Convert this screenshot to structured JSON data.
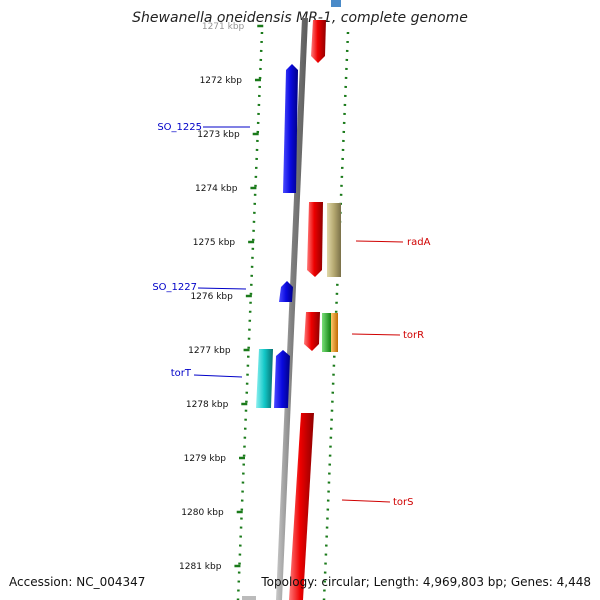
{
  "title": "Shewanella oneidensis MR-1, complete genome",
  "accession_text": "Accession: NC_004347",
  "summary_text": "Topology: circular; Length: 4,969,803 bp; Genes: 4,448",
  "colors": {
    "forward_label": "#0000c8",
    "reverse_label": "#d00000",
    "tick": "#1a7a1a",
    "backbone": "#8a8a8a"
  },
  "ticks": [
    "1271 kbp",
    "1272 kbp",
    "1273 kbp",
    "1274 kbp",
    "1275 kbp",
    "1276 kbp",
    "1277 kbp",
    "1278 kbp",
    "1279 kbp",
    "1280 kbp",
    "1281 kbp"
  ],
  "gene_labels": {
    "so_1225": "SO_1225",
    "so_1227": "SO_1227",
    "tort": "torT",
    "rada": "radA",
    "torr": "torR",
    "tors": "torS"
  },
  "feature_colors": {
    "blue": "#0a0ae0",
    "red": "#ee0000",
    "cyan": "#12c8c8",
    "khaki": "#b4a870",
    "green": "#22b022",
    "orange": "#f09a1a"
  }
}
